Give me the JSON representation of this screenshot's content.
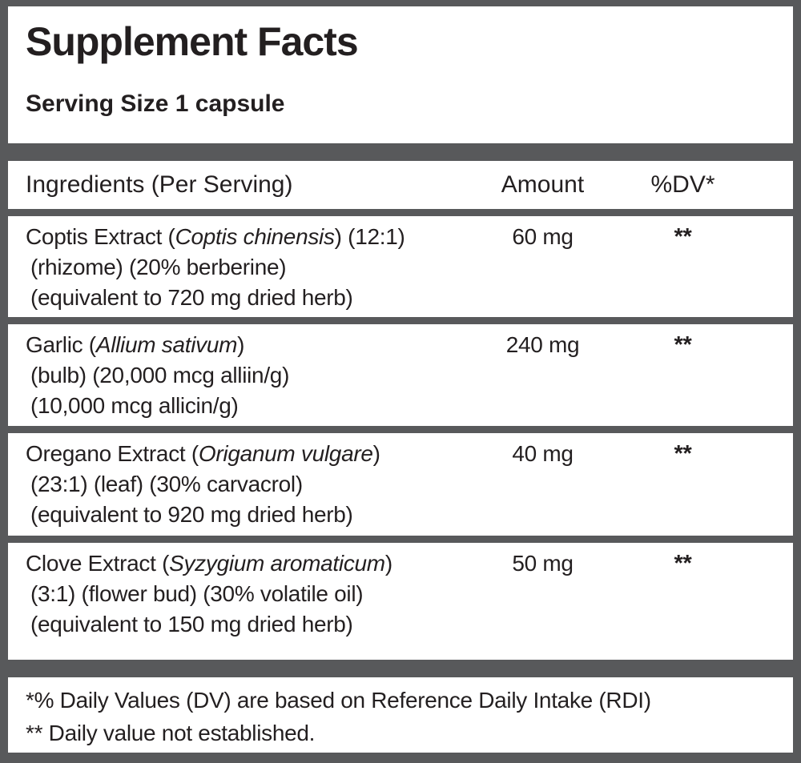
{
  "colors": {
    "frame_gray": "#58595B",
    "panel_white": "#FFFFFF",
    "text_black": "#231F20"
  },
  "label": {
    "title": "Supplement Facts",
    "serving_size": "Serving Size 1 capsule",
    "columns": {
      "ingredients": "Ingredients (Per Serving)",
      "amount": "Amount",
      "dv": "%DV*"
    },
    "rows": [
      {
        "name_prefix": "Coptis Extract (",
        "name_italic": "Coptis chinensis",
        "name_suffix": ") (12:1)",
        "line2": "(rhizome) (20% berberine)",
        "line3": "(equivalent to 720 mg dried herb)",
        "amount": "60 mg",
        "dv": "**"
      },
      {
        "name_prefix": "Garlic (",
        "name_italic": "Allium sativum",
        "name_suffix": ")",
        "line2": "(bulb) (20,000 mcg alliin/g)",
        "line3": "(10,000 mcg allicin/g)",
        "amount": "240 mg",
        "dv": "**"
      },
      {
        "name_prefix": "Oregano Extract (",
        "name_italic": "Origanum vulgare",
        "name_suffix": ")",
        "line2": "(23:1) (leaf) (30% carvacrol)",
        "line3": "(equivalent to 920 mg dried herb)",
        "amount": "40 mg",
        "dv": "**"
      },
      {
        "name_prefix": "Clove Extract (",
        "name_italic": "Syzygium aromaticum",
        "name_suffix": ")",
        "line2": "(3:1) (flower bud) (30% volatile oil)",
        "line3": "(equivalent to 150 mg dried herb)",
        "amount": "50 mg",
        "dv": "**"
      }
    ],
    "footnotes": [
      "*% Daily Values (DV) are based on Reference Daily Intake (RDI)",
      "** Daily value not established."
    ]
  }
}
